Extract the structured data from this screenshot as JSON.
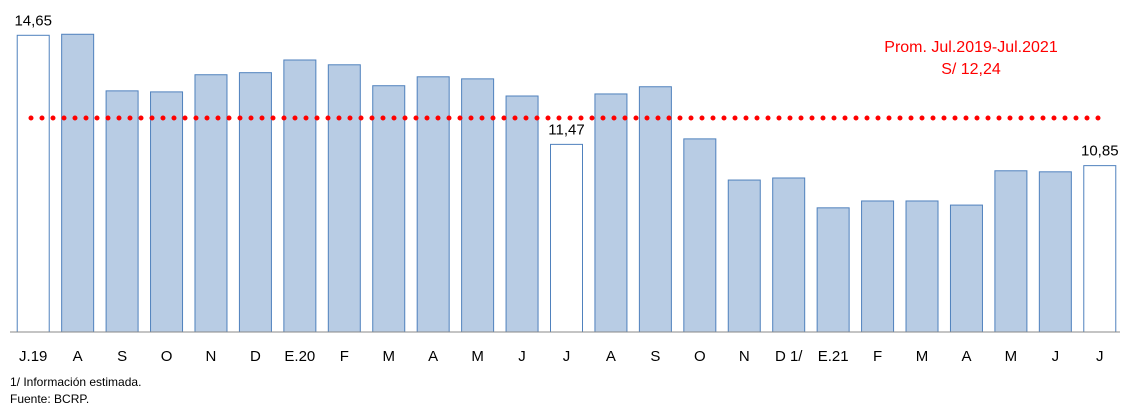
{
  "chart_data": {
    "type": "bar",
    "categories": [
      "J.19",
      "A",
      "S",
      "O",
      "N",
      "D",
      "E.20",
      "F",
      "M",
      "A",
      "M",
      "J",
      "J",
      "A",
      "S",
      "O",
      "N",
      "D 1/",
      "E.21",
      "F",
      "M",
      "A",
      "M",
      "J",
      "J"
    ],
    "values": [
      14.65,
      14.68,
      13.03,
      13.0,
      13.5,
      13.56,
      13.93,
      13.79,
      13.18,
      13.44,
      13.38,
      12.88,
      11.47,
      12.94,
      13.15,
      11.63,
      10.43,
      10.49,
      9.62,
      9.82,
      9.82,
      9.7,
      10.7,
      10.67,
      10.85
    ],
    "value_labels": [
      "14,65",
      null,
      null,
      null,
      null,
      null,
      null,
      null,
      null,
      null,
      null,
      null,
      "11,47",
      null,
      null,
      null,
      null,
      null,
      null,
      null,
      null,
      null,
      null,
      null,
      "10,85"
    ],
    "colors": [
      "#ffffff",
      "#b8cce4",
      "#b8cce4",
      "#b8cce4",
      "#b8cce4",
      "#b8cce4",
      "#b8cce4",
      "#b8cce4",
      "#b8cce4",
      "#b8cce4",
      "#b8cce4",
      "#b8cce4",
      "#ffffff",
      "#b8cce4",
      "#b8cce4",
      "#b8cce4",
      "#b8cce4",
      "#b8cce4",
      "#b8cce4",
      "#b8cce4",
      "#b8cce4",
      "#b8cce4",
      "#b8cce4",
      "#b8cce4",
      "#ffffff"
    ],
    "edge_color": "#4f81bd",
    "ylim": [
      6,
      15.3
    ],
    "reference_line": {
      "value": 12.24,
      "label": "Prom. Jul.2019-Jul.2021",
      "value_label": "S/ 12,24",
      "color": "#ff0000"
    },
    "notes": [
      "1/ Información estimada.",
      "Fuente: BCRP."
    ]
  }
}
